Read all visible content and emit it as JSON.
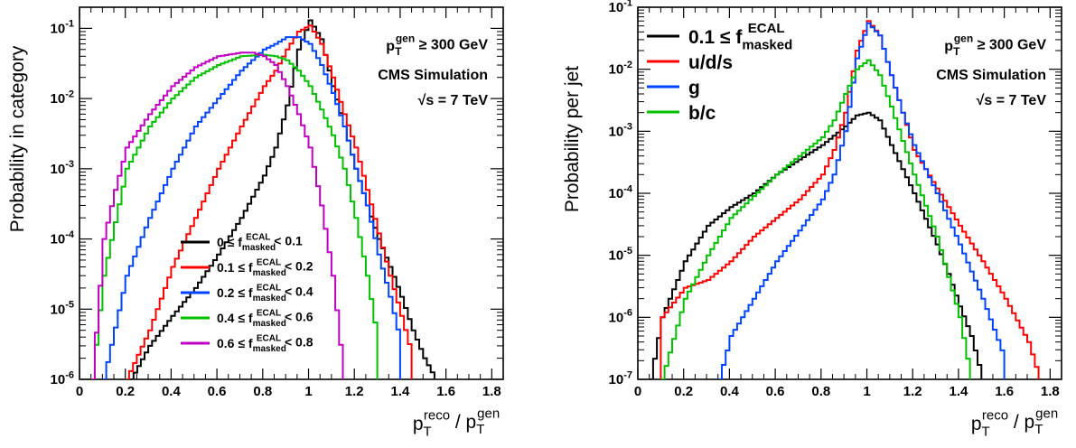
{
  "chart_data": [
    {
      "type": "line",
      "ylabel": "Probability in category",
      "xlabel": "p_T^reco / p_T^gen",
      "xlim": [
        0,
        1.85
      ],
      "ylim": [
        1e-06,
        0.2
      ],
      "yscale": "log",
      "xticks": [
        "0",
        "0.2",
        "0.4",
        "0.6",
        "0.8",
        "1",
        "1.2",
        "1.4",
        "1.6",
        "1.8"
      ],
      "yticks": [
        "10^-6",
        "10^-5",
        "10^-4",
        "10^-3",
        "10^-2",
        "10^-1"
      ],
      "annotations": [
        "p_T^gen ≥ 300 GeV",
        "CMS Simulation",
        "√s = 7 TeV"
      ],
      "legend_position": "lower-center",
      "series": [
        {
          "name": "0 ≤ f_masked^ECAL < 0.1",
          "color": "#000000",
          "x": [
            0.22,
            0.3,
            0.4,
            0.5,
            0.6,
            0.7,
            0.8,
            0.85,
            0.9,
            0.95,
            1.0,
            1.05,
            1.1,
            1.15,
            1.2,
            1.25,
            1.3,
            1.35,
            1.4,
            1.45,
            1.5,
            1.55
          ],
          "y": [
            1e-06,
            3e-06,
            8e-06,
            2e-05,
            6e-05,
            0.0002,
            0.0008,
            0.002,
            0.008,
            0.05,
            0.13,
            0.07,
            0.015,
            0.004,
            0.001,
            0.0003,
            0.0001,
            4e-05,
            1.5e-05,
            5e-06,
            2e-06,
            1e-06
          ]
        },
        {
          "name": "0.1 ≤ f_masked^ECAL < 0.2",
          "color": "#ff0000",
          "x": [
            0.2,
            0.3,
            0.4,
            0.5,
            0.6,
            0.7,
            0.8,
            0.85,
            0.9,
            0.95,
            1.0,
            1.05,
            1.1,
            1.15,
            1.2,
            1.25,
            1.3,
            1.35,
            1.4,
            1.45
          ],
          "y": [
            1e-06,
            5e-06,
            4e-05,
            0.0002,
            0.001,
            0.004,
            0.015,
            0.025,
            0.05,
            0.09,
            0.11,
            0.06,
            0.02,
            0.006,
            0.002,
            0.0005,
            0.00012,
            3e-05,
            8e-06,
            2e-06
          ]
        },
        {
          "name": "0.2 ≤ f_masked^ECAL < 0.4",
          "color": "#0044ff",
          "x": [
            0.1,
            0.2,
            0.3,
            0.4,
            0.5,
            0.6,
            0.7,
            0.8,
            0.85,
            0.9,
            0.95,
            1.0,
            1.05,
            1.1,
            1.15,
            1.2,
            1.25,
            1.3,
            1.35,
            1.4
          ],
          "y": [
            1e-06,
            3e-05,
            0.0002,
            0.001,
            0.004,
            0.01,
            0.025,
            0.05,
            0.06,
            0.075,
            0.075,
            0.06,
            0.03,
            0.012,
            0.004,
            0.001,
            0.0003,
            6e-05,
            1.5e-05,
            3e-06
          ]
        },
        {
          "name": "0.4 ≤ f_masked^ECAL < 0.6",
          "color": "#00c000",
          "x": [
            0.05,
            0.1,
            0.2,
            0.3,
            0.4,
            0.5,
            0.6,
            0.7,
            0.8,
            0.85,
            0.9,
            0.95,
            1.0,
            1.05,
            1.1,
            1.15,
            1.2,
            1.25,
            1.3
          ],
          "y": [
            1e-06,
            3e-05,
            0.001,
            0.004,
            0.01,
            0.02,
            0.03,
            0.04,
            0.042,
            0.04,
            0.035,
            0.025,
            0.015,
            0.007,
            0.003,
            0.001,
            0.0002,
            3e-05,
            3e-06
          ]
        },
        {
          "name": "0.6 ≤ f_masked^ECAL < 0.8",
          "color": "#c000c0",
          "x": [
            0.05,
            0.1,
            0.15,
            0.2,
            0.3,
            0.4,
            0.5,
            0.6,
            0.7,
            0.75,
            0.8,
            0.85,
            0.9,
            0.95,
            1.0,
            1.05,
            1.1,
            1.15
          ],
          "y": [
            1e-06,
            0.0001,
            0.0005,
            0.002,
            0.006,
            0.015,
            0.028,
            0.04,
            0.045,
            0.045,
            0.04,
            0.03,
            0.015,
            0.006,
            0.002,
            0.0003,
            3e-05,
            1e-06
          ]
        }
      ]
    },
    {
      "type": "line",
      "ylabel": "Probability per jet",
      "xlabel": "p_T^reco / p_T^gen",
      "xlim": [
        0,
        1.85
      ],
      "ylim": [
        1e-07,
        0.1
      ],
      "yscale": "log",
      "xticks": [
        "0",
        "0.2",
        "0.4",
        "0.6",
        "0.8",
        "1",
        "1.2",
        "1.4",
        "1.6",
        "1.8"
      ],
      "yticks": [
        "10^-7",
        "10^-6",
        "10^-5",
        "10^-4",
        "10^-3",
        "10^-2",
        "10^-1"
      ],
      "annotations": [
        "p_T^gen ≥ 300 GeV",
        "CMS Simulation",
        "√s = 7 TeV"
      ],
      "legend_position": "top-left",
      "series": [
        {
          "name": "0.1 ≤ f_masked^ECAL",
          "color": "#000000",
          "x": [
            0.05,
            0.1,
            0.2,
            0.3,
            0.4,
            0.5,
            0.6,
            0.7,
            0.8,
            0.9,
            0.95,
            1.0,
            1.05,
            1.1,
            1.2,
            1.3,
            1.35,
            1.4,
            1.45,
            1.5
          ],
          "y": [
            1e-07,
            1e-06,
            8e-06,
            3e-05,
            6e-05,
            0.0001,
            0.0002,
            0.00035,
            0.0006,
            0.0012,
            0.0018,
            0.002,
            0.0015,
            0.0006,
            0.0001,
            1.5e-05,
            5e-06,
            1.5e-06,
            5e-07,
            1e-07
          ]
        },
        {
          "name": "u/d/s",
          "color": "#ff0000",
          "x": [
            0.1,
            0.2,
            0.3,
            0.4,
            0.5,
            0.6,
            0.7,
            0.8,
            0.85,
            0.9,
            0.95,
            1.0,
            1.05,
            1.1,
            1.15,
            1.2,
            1.3,
            1.4,
            1.5,
            1.6,
            1.7,
            1.75
          ],
          "y": [
            1e-06,
            3e-06,
            4e-06,
            8e-06,
            2e-05,
            4e-05,
            8e-05,
            0.0002,
            0.0005,
            0.002,
            0.02,
            0.06,
            0.035,
            0.008,
            0.002,
            0.0005,
            0.00012,
            3e-05,
            8e-06,
            2e-06,
            4e-07,
            1e-07
          ]
        },
        {
          "name": "g",
          "color": "#0044ff",
          "x": [
            0.35,
            0.4,
            0.5,
            0.6,
            0.7,
            0.8,
            0.85,
            0.9,
            0.95,
            1.0,
            1.05,
            1.1,
            1.15,
            1.2,
            1.3,
            1.4,
            1.5,
            1.6
          ],
          "y": [
            1e-07,
            5e-07,
            2e-06,
            8e-06,
            2.5e-05,
            8e-05,
            0.0002,
            0.001,
            0.015,
            0.055,
            0.035,
            0.008,
            0.002,
            0.0006,
            0.0001,
            1.5e-05,
            2e-06,
            2e-07
          ]
        },
        {
          "name": "b/c",
          "color": "#00c000",
          "x": [
            0.1,
            0.2,
            0.3,
            0.4,
            0.5,
            0.6,
            0.7,
            0.8,
            0.85,
            0.9,
            0.95,
            1.0,
            1.05,
            1.1,
            1.15,
            1.2,
            1.3,
            1.4,
            1.45
          ],
          "y": [
            1e-07,
            2e-06,
            1e-05,
            4e-05,
            9e-05,
            0.0002,
            0.0004,
            0.0008,
            0.0015,
            0.004,
            0.01,
            0.014,
            0.008,
            0.0025,
            0.0007,
            0.0002,
            2e-05,
            1e-06,
            1e-07
          ]
        }
      ]
    }
  ]
}
